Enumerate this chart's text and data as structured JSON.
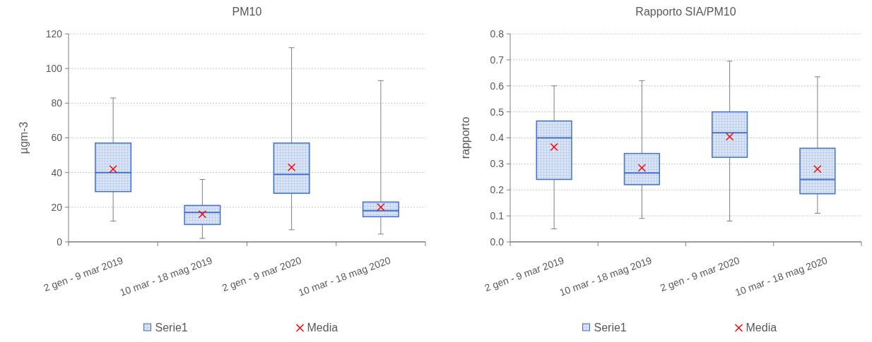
{
  "chart_data": [
    {
      "type": "box",
      "title": "PM10",
      "ylabel": "µgm-3",
      "categories": [
        "2 gen - 9 mar 2019",
        "10 mar - 18 mag 2019",
        "2 gen - 9 mar 2020",
        "10 mar - 18 mag 2020"
      ],
      "ylim": [
        0,
        120
      ],
      "yticks": [
        0,
        20,
        40,
        60,
        80,
        100,
        120
      ],
      "grid": "y",
      "legend": "bottom",
      "series": [
        {
          "name": "Serie1",
          "color": "#4472c4",
          "boxes": [
            {
              "low": 12,
              "q1": 29,
              "median": 40,
              "q3": 57,
              "high": 83
            },
            {
              "low": 2,
              "q1": 10,
              "median": 17,
              "q3": 21,
              "high": 36
            },
            {
              "low": 7,
              "q1": 28,
              "median": 39,
              "q3": 57,
              "high": 112
            },
            {
              "low": 4.5,
              "q1": 14.5,
              "median": 18,
              "q3": 23,
              "high": 93
            }
          ]
        },
        {
          "name": "Media",
          "type": "scatter",
          "color": "#ff0000",
          "marker": "cross",
          "values": [
            42,
            16,
            43,
            20
          ]
        }
      ]
    },
    {
      "type": "box",
      "title": "Rapporto SIA/PM10",
      "ylabel": "rapporto",
      "categories": [
        "2 gen - 9 mar 2019",
        "10 mar - 18 mag 2019",
        "2 gen - 9 mar 2020",
        "10 mar - 18 mag 2020"
      ],
      "ylim": [
        0,
        0.8
      ],
      "yticks": [
        {
          "value": 0,
          "label": "0.0"
        },
        0.1,
        0.2,
        0.3,
        0.4,
        0.5,
        0.6,
        0.7,
        0.8
      ],
      "grid": "y",
      "legend": "bottom",
      "series": [
        {
          "name": "Serie1",
          "color": "#4472c4",
          "boxes": [
            {
              "low": 0.05,
              "q1": 0.24,
              "median": 0.4,
              "q3": 0.465,
              "high": 0.6
            },
            {
              "low": 0.09,
              "q1": 0.22,
              "median": 0.265,
              "q3": 0.34,
              "high": 0.62
            },
            {
              "low": 0.08,
              "q1": 0.325,
              "median": 0.42,
              "q3": 0.5,
              "high": 0.695
            },
            {
              "low": 0.11,
              "q1": 0.185,
              "median": 0.24,
              "q3": 0.36,
              "high": 0.635
            }
          ]
        },
        {
          "name": "Media",
          "type": "scatter",
          "color": "#ff0000",
          "marker": "cross",
          "values": [
            0.365,
            0.285,
            0.405,
            0.28
          ]
        }
      ]
    }
  ]
}
